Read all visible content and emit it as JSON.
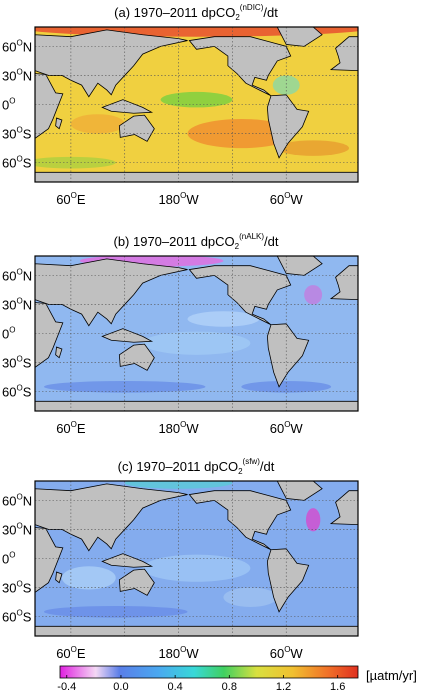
{
  "panels": [
    {
      "title": {
        "text": "(a) 1970–2011 dpCO",
        "sub": "2",
        "sup": "(nDIC)",
        "tail": "/dt"
      }
    },
    {
      "title": {
        "text": "(b) 1970–2011 dpCO",
        "sub": "2",
        "sup": "(nALK)",
        "tail": "/dt"
      }
    },
    {
      "title": {
        "text": "(c) 1970–2011 dpCO",
        "sub": "2",
        "sup": "(sfw)",
        "tail": "/dt"
      }
    }
  ],
  "lat_labels": [
    {
      "num": "60",
      "deg": "O",
      "hem": "N"
    },
    {
      "num": "30",
      "deg": "O",
      "hem": "N"
    },
    {
      "num": "0",
      "deg": "O"
    },
    {
      "num": "30",
      "deg": "O",
      "hem": "S"
    },
    {
      "num": "60",
      "deg": "O",
      "hem": "S"
    }
  ],
  "lon_labels": [
    {
      "num": "60",
      "deg": "O",
      "hem": "E"
    },
    {
      "num": "180",
      "deg": "O",
      "hem": "W"
    },
    {
      "num": "60",
      "deg": "O",
      "hem": "W"
    }
  ],
  "colorbar": {
    "lim": [
      -0.45,
      1.75
    ],
    "ticks": [
      -0.4,
      {
        "value": 0,
        "label": "0.0"
      },
      0.4,
      0.8,
      1.2,
      1.6
    ],
    "unit": "[µatm/yr]"
  }
}
